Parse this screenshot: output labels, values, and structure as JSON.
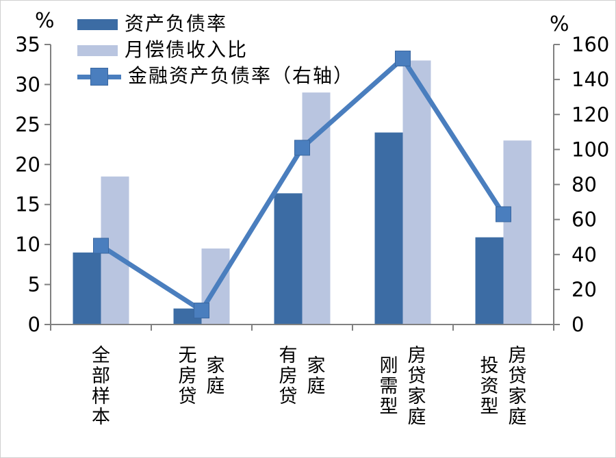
{
  "chart_data": {
    "type": "bar",
    "combo": "bar+line",
    "title": "",
    "categories": [
      "全部样本",
      "无房贷家庭",
      "有房贷家庭",
      "刚需型房贷家庭",
      "投资型房贷家庭"
    ],
    "category_label_lines": [
      [
        "全部样本"
      ],
      [
        "无房贷",
        "家庭"
      ],
      [
        "有房贷",
        "家庭"
      ],
      [
        "刚需型",
        "房贷家庭"
      ],
      [
        "投资型",
        "房贷家庭"
      ]
    ],
    "series": [
      {
        "name": "资产负债率",
        "type": "bar",
        "axis": "left",
        "color": "#3C6CA4",
        "values": [
          9,
          2,
          16.4,
          24,
          10.9
        ]
      },
      {
        "name": "月偿债收入比",
        "type": "bar",
        "axis": "left",
        "color": "#B9C5E0",
        "values": [
          18.5,
          9.5,
          29,
          33,
          23
        ]
      },
      {
        "name": "金融资产负债率（右轴）",
        "type": "line",
        "axis": "right",
        "color": "#4A7EBE",
        "marker": "square",
        "marker_border": "#39669F",
        "values": [
          45,
          8,
          101,
          152,
          63
        ]
      }
    ],
    "left_axis": {
      "unit": "%",
      "min": 0,
      "max": 35,
      "step": 5
    },
    "right_axis": {
      "unit": "%",
      "min": 0,
      "max": 160,
      "step": 20
    },
    "grid": false,
    "legend_position": "top-left",
    "axis_color": "#808080",
    "text_color": "#000000",
    "background": "#FFFFFF"
  }
}
